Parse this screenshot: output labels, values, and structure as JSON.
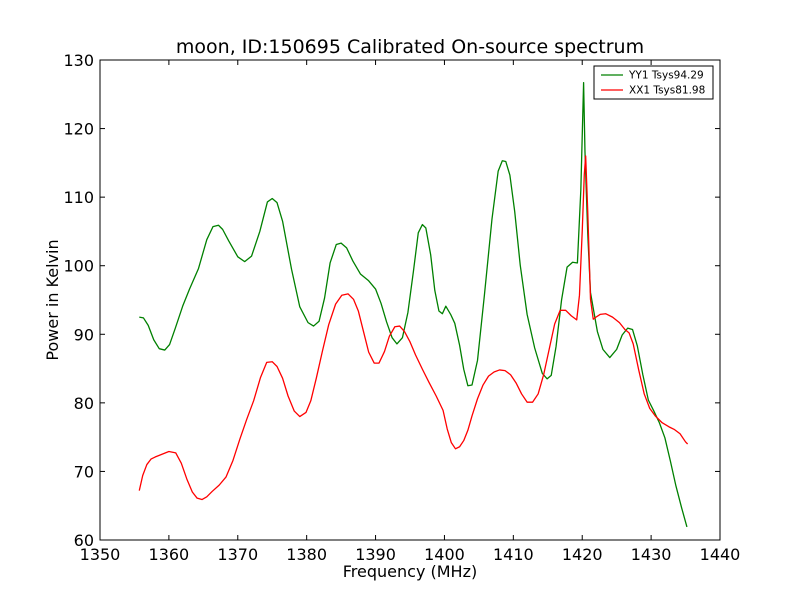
{
  "chart_data": {
    "type": "line",
    "title": "moon, ID:150695 Calibrated On-source spectrum",
    "xlabel": "Frequency (MHz)",
    "ylabel": "Power in Kelvin",
    "xlim": [
      1350,
      1440
    ],
    "ylim": [
      60,
      130
    ],
    "xticks": [
      1350,
      1360,
      1370,
      1380,
      1390,
      1400,
      1410,
      1420,
      1430,
      1440
    ],
    "yticks": [
      60,
      70,
      80,
      90,
      100,
      110,
      120,
      130
    ],
    "grid": false,
    "legend_position": "top-right",
    "series": [
      {
        "name": "YY1 Tsys94.29",
        "color": "#008000",
        "x": [
          1355.7,
          1356.3,
          1357.0,
          1357.8,
          1358.6,
          1359.4,
          1360.1,
          1360.9,
          1362.0,
          1363.0,
          1364.3,
          1365.5,
          1366.4,
          1367.2,
          1367.8,
          1368.7,
          1370.0,
          1371.0,
          1372.0,
          1373.2,
          1374.3,
          1375.0,
          1375.7,
          1376.5,
          1377.8,
          1379.0,
          1380.2,
          1381.0,
          1381.8,
          1382.6,
          1383.4,
          1384.3,
          1385.0,
          1385.8,
          1386.7,
          1387.8,
          1389.0,
          1390.0,
          1390.8,
          1391.6,
          1392.4,
          1393.1,
          1393.9,
          1394.7,
          1395.5,
          1396.2,
          1396.8,
          1397.3,
          1398.0,
          1398.6,
          1399.2,
          1399.7,
          1400.2,
          1400.9,
          1401.5,
          1402.2,
          1402.8,
          1403.4,
          1404.0,
          1404.8,
          1405.8,
          1406.9,
          1407.8,
          1408.4,
          1408.9,
          1409.5,
          1410.2,
          1411.0,
          1412.0,
          1413.1,
          1414.2,
          1414.9,
          1415.5,
          1416.2,
          1417.0,
          1417.8,
          1418.6,
          1419.3,
          1419.8,
          1420.2,
          1420.4,
          1420.8,
          1421.2,
          1421.6,
          1422.2,
          1423.0,
          1424.0,
          1425.0,
          1425.8,
          1426.6,
          1427.3,
          1428.0,
          1428.8,
          1429.6,
          1430.4,
          1431.2,
          1432.0,
          1432.8,
          1433.6,
          1434.4,
          1435.2
        ],
        "values": [
          92.5,
          92.4,
          91.3,
          89.2,
          87.9,
          87.7,
          88.5,
          90.8,
          94.1,
          96.6,
          99.6,
          103.8,
          105.7,
          105.9,
          105.3,
          103.6,
          101.3,
          100.6,
          101.4,
          105.0,
          109.3,
          109.8,
          109.2,
          106.5,
          99.5,
          94.0,
          91.7,
          91.2,
          91.9,
          95.3,
          100.4,
          103.1,
          103.3,
          102.6,
          100.7,
          98.8,
          97.8,
          96.6,
          94.5,
          91.8,
          89.5,
          88.6,
          89.5,
          93.2,
          99.2,
          104.8,
          106.0,
          105.5,
          101.6,
          96.4,
          93.4,
          93.0,
          94.1,
          92.9,
          91.6,
          88.4,
          84.9,
          82.5,
          82.6,
          86.2,
          95.7,
          106.8,
          113.8,
          115.3,
          115.2,
          113.2,
          107.9,
          100.1,
          92.9,
          88.0,
          84.3,
          83.5,
          84.0,
          88.2,
          95.0,
          99.8,
          100.5,
          100.4,
          111.1,
          126.7,
          116.6,
          104.7,
          96.1,
          93.8,
          90.4,
          87.8,
          86.6,
          87.8,
          89.9,
          90.9,
          90.7,
          88.3,
          84.1,
          80.4,
          78.8,
          77.1,
          74.9,
          71.5,
          67.9,
          64.8,
          61.9
        ]
      },
      {
        "name": "XX1 Tsys81.98",
        "color": "#ff0000",
        "x": [
          1355.7,
          1356.2,
          1356.8,
          1357.4,
          1358.0,
          1359.0,
          1360.0,
          1361.0,
          1361.8,
          1362.6,
          1363.4,
          1364.1,
          1364.8,
          1365.5,
          1366.3,
          1367.3,
          1368.3,
          1369.3,
          1370.3,
          1371.3,
          1372.3,
          1373.3,
          1374.2,
          1375.0,
          1375.7,
          1376.5,
          1377.3,
          1378.2,
          1379.0,
          1379.9,
          1380.6,
          1381.4,
          1382.3,
          1383.2,
          1384.2,
          1385.1,
          1386.0,
          1386.8,
          1387.5,
          1388.2,
          1389.0,
          1389.8,
          1390.5,
          1391.3,
          1392.0,
          1392.8,
          1393.5,
          1394.2,
          1395.0,
          1395.8,
          1396.8,
          1397.8,
          1398.8,
          1399.8,
          1400.4,
          1401.0,
          1401.6,
          1402.2,
          1402.8,
          1403.4,
          1404.0,
          1404.8,
          1405.6,
          1406.4,
          1407.2,
          1408.0,
          1408.8,
          1409.6,
          1410.4,
          1411.2,
          1412.0,
          1412.8,
          1413.6,
          1414.4,
          1415.2,
          1416.0,
          1416.8,
          1417.6,
          1418.4,
          1419.2,
          1419.6,
          1420.0,
          1420.3,
          1420.5,
          1420.8,
          1421.2,
          1421.6,
          1422.0,
          1422.6,
          1423.4,
          1424.4,
          1425.4,
          1426.2,
          1426.8,
          1427.4,
          1428.2,
          1429.0,
          1429.8,
          1430.6,
          1431.6,
          1432.6,
          1433.4,
          1434.2,
          1435.0,
          1435.3
        ],
        "values": [
          67.2,
          69.4,
          71.0,
          71.8,
          72.1,
          72.5,
          72.9,
          72.7,
          71.2,
          68.9,
          67.0,
          66.1,
          65.9,
          66.3,
          67.1,
          68.0,
          69.2,
          71.6,
          74.7,
          77.6,
          80.3,
          83.7,
          85.9,
          86.0,
          85.3,
          83.6,
          81.0,
          78.8,
          78.0,
          78.6,
          80.3,
          83.6,
          87.6,
          91.4,
          94.4,
          95.7,
          95.9,
          95.1,
          93.4,
          90.6,
          87.4,
          85.8,
          85.8,
          87.5,
          89.7,
          91.1,
          91.2,
          90.4,
          88.9,
          87.0,
          84.9,
          82.9,
          81.0,
          78.9,
          76.2,
          74.2,
          73.3,
          73.6,
          74.5,
          76.0,
          78.1,
          80.6,
          82.6,
          83.9,
          84.5,
          84.8,
          84.7,
          84.1,
          82.9,
          81.3,
          80.1,
          80.1,
          81.3,
          84.1,
          87.8,
          91.5,
          93.5,
          93.5,
          92.7,
          92.1,
          95.7,
          105.0,
          113.3,
          116.0,
          108.0,
          95.1,
          92.2,
          92.5,
          92.9,
          93.0,
          92.5,
          91.7,
          90.7,
          90.2,
          88.6,
          84.8,
          81.3,
          79.2,
          78.1,
          77.1,
          76.5,
          76.1,
          75.5,
          74.3,
          74.0
        ]
      }
    ]
  }
}
